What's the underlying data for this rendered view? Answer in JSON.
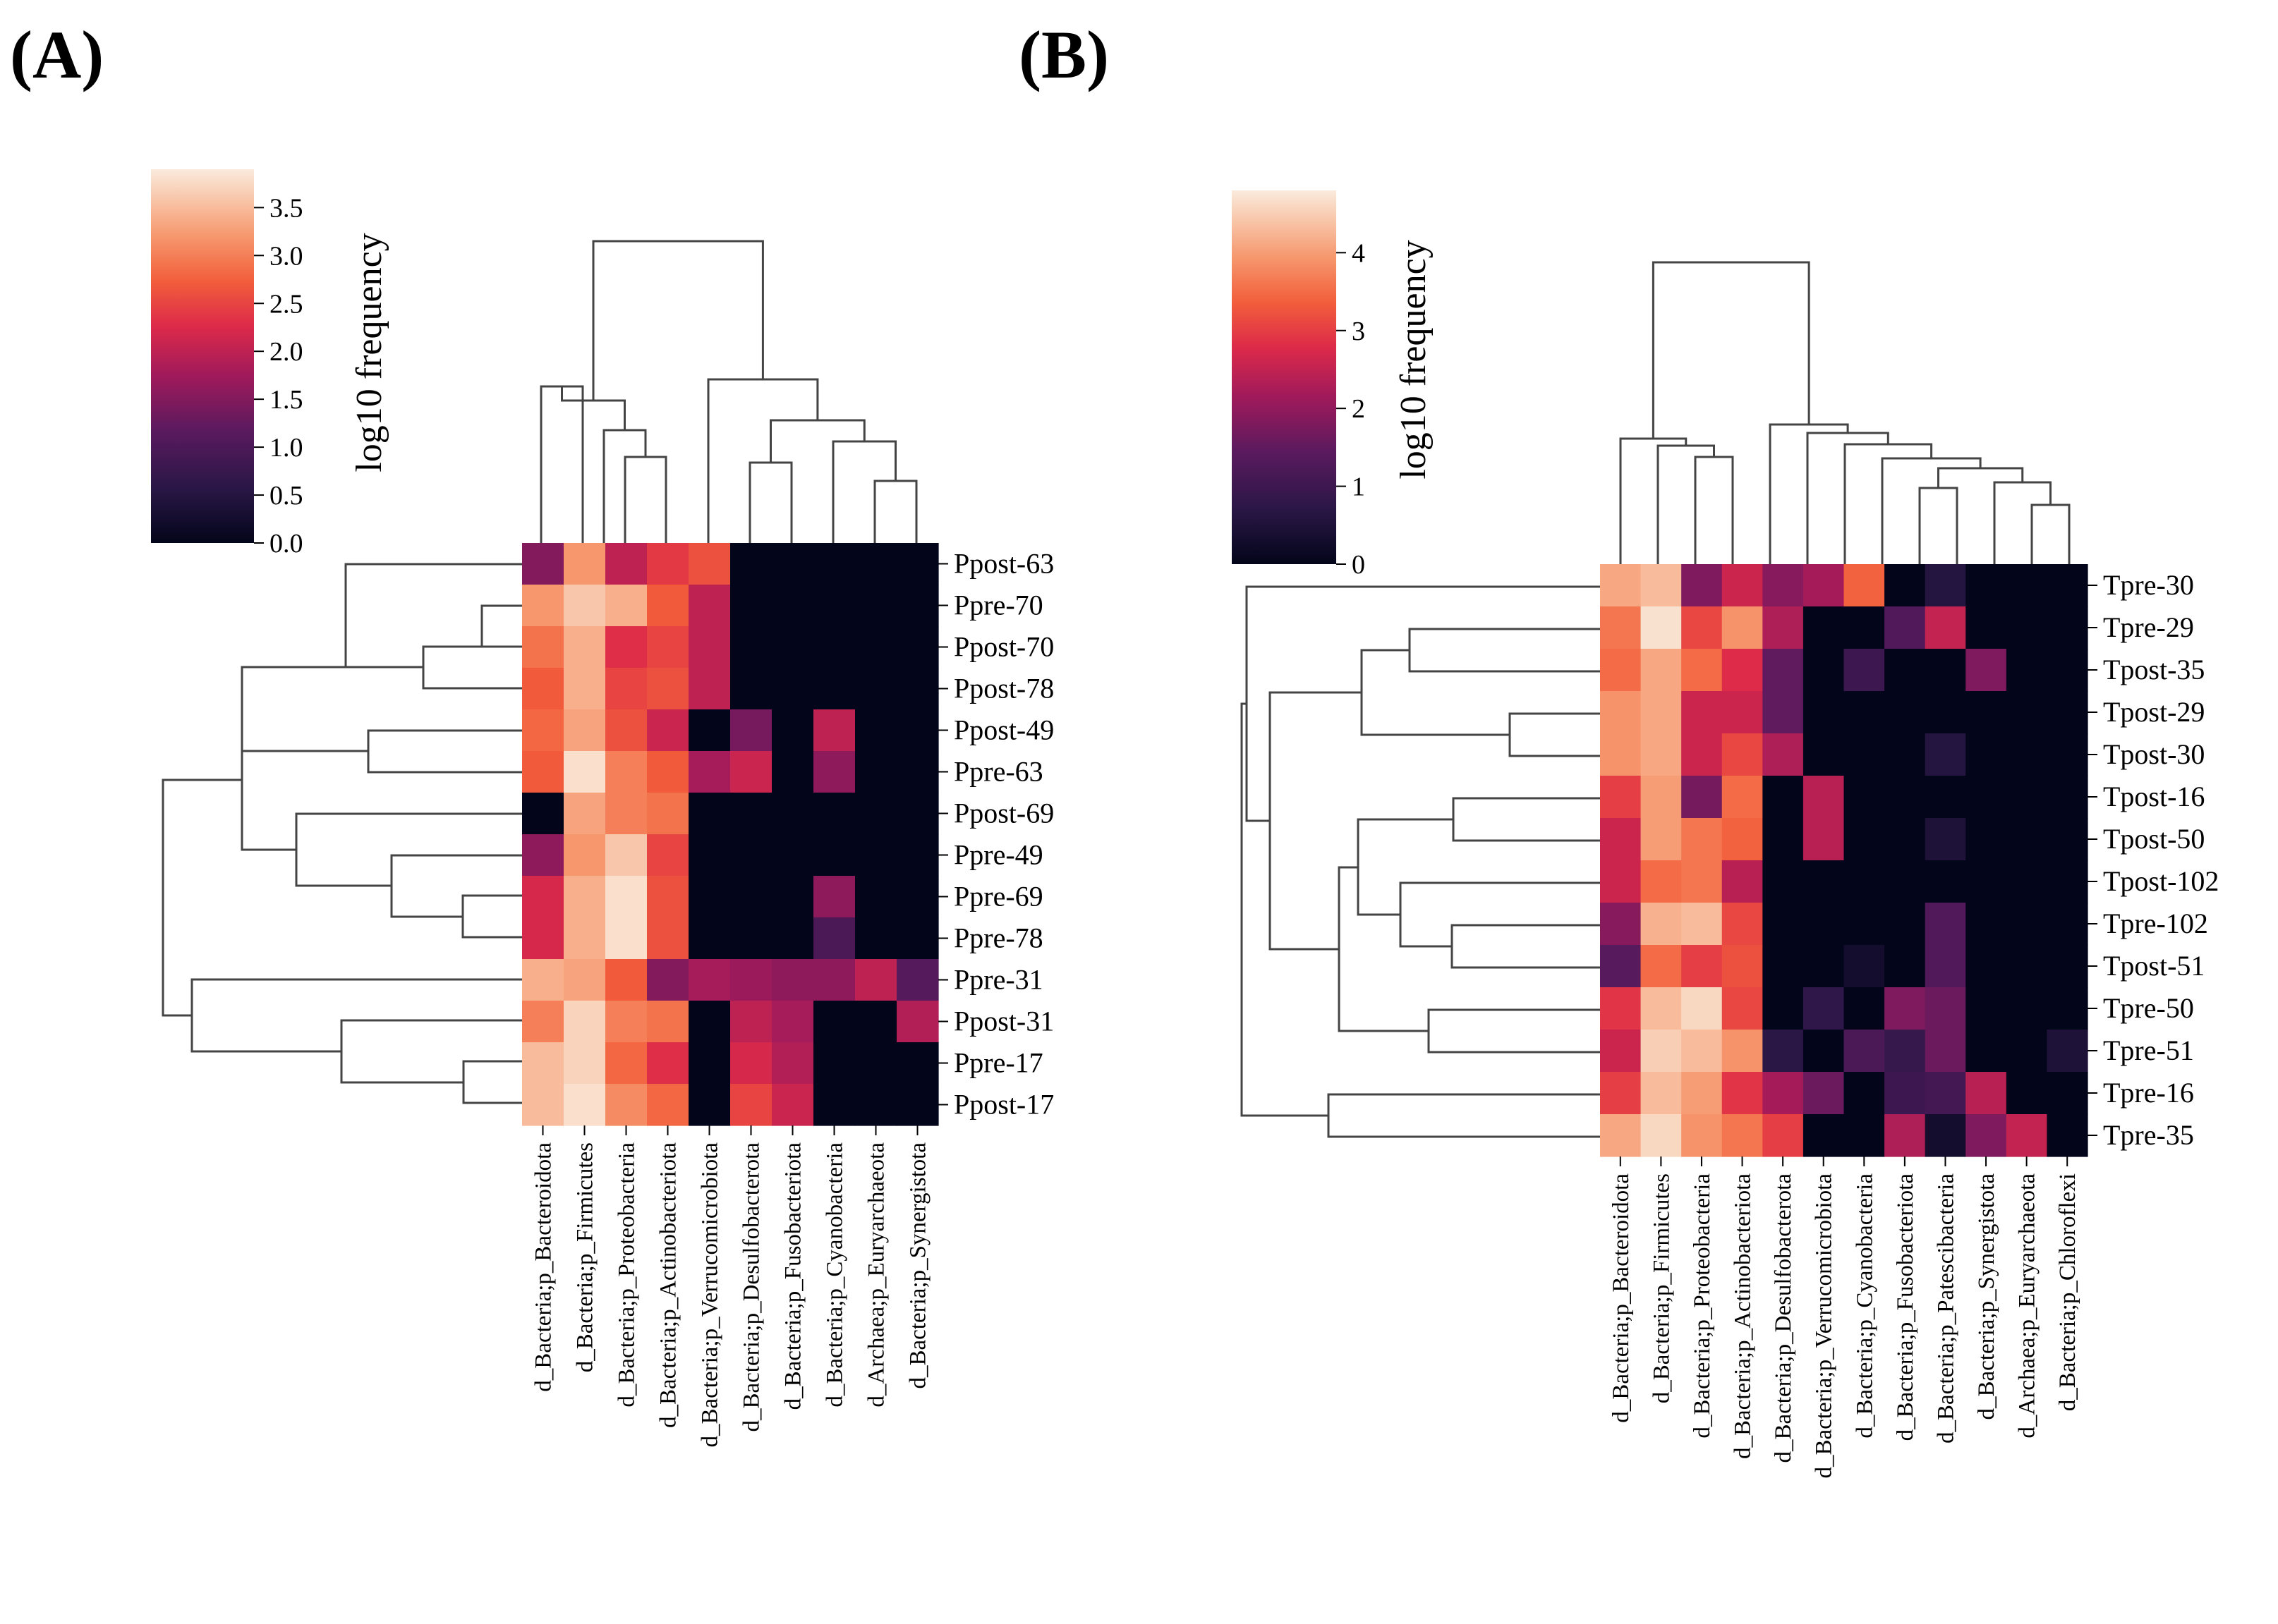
{
  "panels": {
    "a_label": "(A)",
    "b_label": "(B)"
  },
  "chart_data": [
    {
      "type": "heatmap",
      "colorbar_label": "log10 frequency",
      "colorbar_ticks": [
        "0.0",
        "0.5",
        "1.0",
        "1.5",
        "2.0",
        "2.5",
        "3.0",
        "3.5"
      ],
      "color_range": [
        0,
        3.9
      ],
      "columns": [
        "d_Bacteria;p_Bacteroidota",
        "d_Bacteria;p_Firmicutes",
        "d_Bacteria;p_Proteobacteria",
        "d_Bacteria;p_Actinobacteriota",
        "d_Bacteria;p_Verrucomicrobiota",
        "d_Bacteria;p_Desulfobacterota",
        "d_Bacteria;p_Fusobacteriota",
        "d_Bacteria;p_Cyanobacteria",
        "d_Archaea;p_Euryarchaeota",
        "d_Bacteria;p_Synergistota"
      ],
      "rows": [
        "Ppost-63",
        "Ppre-70",
        "Ppost-70",
        "Ppost-78",
        "Ppost-49",
        "Ppre-63",
        "Ppost-69",
        "Ppre-49",
        "Ppre-69",
        "Ppre-78",
        "Ppre-31",
        "Ppost-31",
        "Ppre-17",
        "Ppost-17"
      ],
      "values": [
        [
          1.5,
          3.2,
          2.0,
          2.4,
          2.6,
          0,
          0,
          0,
          0,
          0
        ],
        [
          3.2,
          3.6,
          3.4,
          2.7,
          2.0,
          0,
          0,
          0,
          0,
          0
        ],
        [
          2.9,
          3.4,
          2.3,
          2.5,
          2.0,
          0,
          0,
          0,
          0,
          0
        ],
        [
          2.7,
          3.4,
          2.5,
          2.6,
          2.0,
          0,
          0,
          0,
          0,
          0
        ],
        [
          2.8,
          3.3,
          2.6,
          2.1,
          0,
          1.4,
          0,
          2.0,
          0,
          0
        ],
        [
          2.7,
          3.8,
          3.0,
          2.7,
          1.8,
          2.1,
          0,
          1.6,
          0,
          0
        ],
        [
          0,
          3.3,
          3.0,
          2.9,
          0,
          0,
          0,
          0,
          0,
          0
        ],
        [
          1.6,
          3.2,
          3.6,
          2.5,
          0,
          0,
          0,
          0,
          0,
          0
        ],
        [
          2.2,
          3.4,
          3.8,
          2.6,
          0,
          0,
          0,
          1.6,
          0,
          0
        ],
        [
          2.2,
          3.4,
          3.8,
          2.6,
          0,
          0,
          0,
          1.0,
          0,
          0
        ],
        [
          3.4,
          3.3,
          2.7,
          1.5,
          1.8,
          1.7,
          1.6,
          1.6,
          2.0,
          1.1
        ],
        [
          3.0,
          3.7,
          3.0,
          2.9,
          0,
          2.0,
          1.8,
          0,
          0,
          1.9
        ],
        [
          3.5,
          3.7,
          2.8,
          2.3,
          0,
          2.2,
          1.9,
          0,
          0,
          0
        ],
        [
          3.5,
          3.8,
          3.1,
          2.8,
          0,
          2.5,
          2.1,
          0,
          0,
          0
        ]
      ]
    },
    {
      "type": "heatmap",
      "colorbar_label": "log10 frequency",
      "colorbar_ticks": [
        "0",
        "1",
        "2",
        "3",
        "4"
      ],
      "color_range": [
        0,
        4.8
      ],
      "columns": [
        "d_Bacteria;p_Bacteroidota",
        "d_Bacteria;p_Firmicutes",
        "d_Bacteria;p_Proteobacteria",
        "d_Bacteria;p_Actinobacteriota",
        "d_Bacteria;p_Desulfobacterota",
        "d_Bacteria;p_Verrucomicrobiota",
        "d_Bacteria;p_Cyanobacteria",
        "d_Bacteria;p_Fusobacteriota",
        "d_Bacteria;p_Patescibacteria",
        "d_Bacteria;p_Synergistota",
        "d_Archaea;p_Euryarchaeota",
        "d_Bacteria;p_Chloroflexi"
      ],
      "rows": [
        "Tpre-30",
        "Tpre-29",
        "Tpost-35",
        "Tpost-29",
        "Tpost-30",
        "Tpost-16",
        "Tpost-50",
        "Tpost-102",
        "Tpre-102",
        "Tpost-51",
        "Tpre-50",
        "Tpre-51",
        "Tpre-16",
        "Tpre-35"
      ],
      "values": [
        [
          4.1,
          4.3,
          1.8,
          2.6,
          1.9,
          2.2,
          3.4,
          0,
          0.6,
          0,
          0,
          0
        ],
        [
          3.6,
          4.7,
          3.1,
          3.9,
          2.3,
          0,
          0,
          1.3,
          2.5,
          0,
          0,
          0
        ],
        [
          3.5,
          4.1,
          3.5,
          2.8,
          1.5,
          0,
          1.0,
          0,
          0,
          1.8,
          0,
          0
        ],
        [
          3.9,
          4.1,
          2.6,
          2.6,
          1.5,
          0,
          0,
          0,
          0,
          0,
          0,
          0
        ],
        [
          3.9,
          4.1,
          2.6,
          3.1,
          2.3,
          0,
          0,
          0,
          0.6,
          0,
          0,
          0
        ],
        [
          3.0,
          4.0,
          1.7,
          3.5,
          0,
          2.4,
          0,
          0,
          0,
          0,
          0,
          0
        ],
        [
          2.6,
          4.0,
          3.6,
          3.4,
          0,
          2.4,
          0,
          0,
          0.5,
          0,
          0,
          0
        ],
        [
          2.6,
          3.5,
          3.6,
          2.4,
          0,
          0,
          0,
          0,
          0,
          0,
          0,
          0
        ],
        [
          1.9,
          4.2,
          4.3,
          3.1,
          0,
          0,
          0,
          0,
          1.3,
          0,
          0,
          0
        ],
        [
          1.4,
          3.5,
          3.0,
          3.2,
          0,
          0,
          0.3,
          0,
          1.3,
          0,
          0,
          0
        ],
        [
          2.9,
          4.3,
          4.6,
          3.1,
          0,
          0.8,
          0,
          1.8,
          1.6,
          0,
          0,
          0
        ],
        [
          2.6,
          4.5,
          4.3,
          3.9,
          0.7,
          0,
          1.2,
          0.9,
          1.6,
          0,
          0,
          0.5
        ],
        [
          3.0,
          4.3,
          4.0,
          2.9,
          2.2,
          1.6,
          0,
          1.0,
          1.1,
          2.4,
          0,
          0
        ],
        [
          4.1,
          4.6,
          3.9,
          3.6,
          3.0,
          0,
          0,
          2.3,
          0.3,
          1.8,
          2.5,
          0
        ]
      ]
    }
  ]
}
